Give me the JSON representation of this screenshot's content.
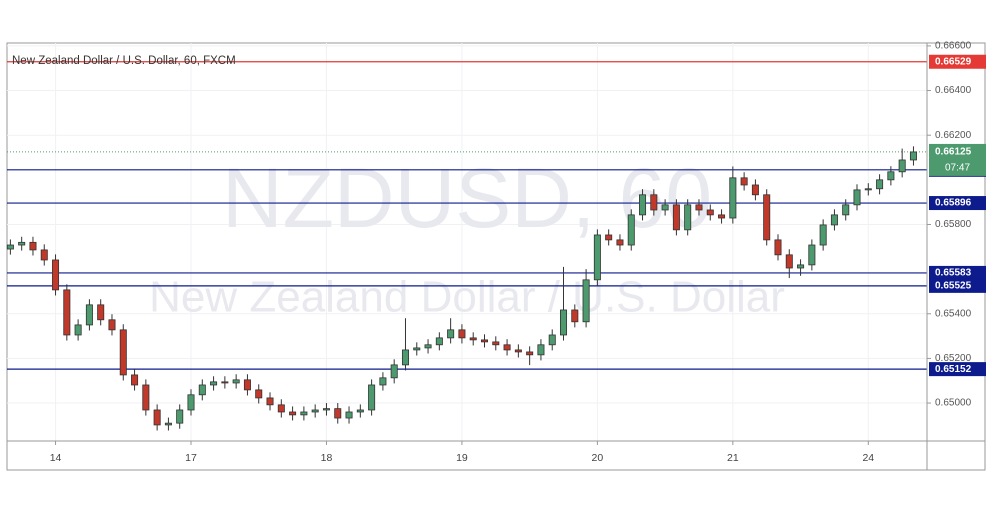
{
  "chart_data": {
    "type": "candlestick",
    "title": "New Zealand Dollar / U.S. Dollar, 60, FXCM",
    "watermark_symbol": "NZDUSD, 60",
    "watermark_name": "New Zealand Dollar / U.S. Dollar",
    "up_color": "#4c9a6e",
    "down_color": "#c0392b",
    "grid": true,
    "xlim": [
      -0.3,
      81.2
    ],
    "ylim": [
      0.6483,
      0.66613
    ],
    "yticks": [
      {
        "value": 0.65,
        "label": "0.65000"
      },
      {
        "value": 0.652,
        "label": "0.65200"
      },
      {
        "value": 0.654,
        "label": "0.65400"
      },
      {
        "value": 0.658,
        "label": "0.65800"
      },
      {
        "value": 0.662,
        "label": "0.66200"
      },
      {
        "value": 0.664,
        "label": "0.66400"
      },
      {
        "value": 0.666,
        "label": "0.66600"
      }
    ],
    "xticks": [
      {
        "value": 4,
        "label": "14"
      },
      {
        "value": 16,
        "label": "17"
      },
      {
        "value": 28,
        "label": "18"
      },
      {
        "value": 40,
        "label": "19"
      },
      {
        "value": 52,
        "label": "20"
      },
      {
        "value": 64,
        "label": "21"
      },
      {
        "value": 76,
        "label": "24"
      }
    ],
    "levels": [
      {
        "value": 0.66529,
        "color": "#e53935"
      },
      {
        "value": 0.66045,
        "color": "#0d1b8c"
      },
      {
        "value": 0.65896,
        "color": "#0d1b8c"
      },
      {
        "value": 0.65583,
        "color": "#0d1b8c"
      },
      {
        "value": 0.65525,
        "color": "#0d1b8c"
      },
      {
        "value": 0.65152,
        "color": "#0d1b8c"
      }
    ],
    "last_price": 0.66125,
    "last_price_color": "#4c9a6e",
    "countdown": "07:47",
    "open": [
      0.6569,
      0.65708,
      0.6572,
      0.65686,
      0.65641,
      0.65507,
      0.65305,
      0.6535,
      0.6544,
      0.65373,
      0.65328,
      0.65126,
      0.65081,
      0.64969,
      0.64902,
      0.6491,
      0.64969,
      0.65037,
      0.65081,
      0.65095,
      0.6509,
      0.65104,
      0.65059,
      0.65023,
      0.64992,
      0.6496,
      0.64947,
      0.6496,
      0.64969,
      0.64975,
      0.64933,
      0.6496,
      0.64969,
      0.65081,
      0.65113,
      0.65171,
      0.65238,
      0.65247,
      0.65261,
      0.65292,
      0.65328,
      0.65292,
      0.65283,
      0.65274,
      0.65261,
      0.65238,
      0.65229,
      0.65216,
      0.65261,
      0.65305,
      0.65417,
      0.65364,
      0.65552,
      0.65753,
      0.65731,
      0.65708,
      0.65843,
      0.65933,
      0.65865,
      0.65888,
      0.65776,
      0.65888,
      0.65865,
      0.65843,
      0.65829,
      0.66009,
      0.65977,
      0.65933,
      0.65731,
      0.65664,
      0.65605,
      0.65619,
      0.65708,
      0.65798,
      0.65843,
      0.65888,
      0.65955,
      0.6596,
      0.66,
      0.66036,
      0.66089
    ],
    "high": [
      0.65733,
      0.65745,
      0.65745,
      0.65711,
      0.65666,
      0.65532,
      0.65375,
      0.65465,
      0.65465,
      0.65398,
      0.65353,
      0.65151,
      0.65106,
      0.64994,
      0.64935,
      0.64994,
      0.65062,
      0.65106,
      0.6512,
      0.6512,
      0.65129,
      0.65129,
      0.65084,
      0.65048,
      0.65017,
      0.64985,
      0.64985,
      0.64994,
      0.65,
      0.65,
      0.64985,
      0.64994,
      0.65106,
      0.65138,
      0.65196,
      0.6538,
      0.65272,
      0.65286,
      0.65317,
      0.6538,
      0.65353,
      0.65317,
      0.65308,
      0.65299,
      0.65286,
      0.65263,
      0.65254,
      0.65286,
      0.6533,
      0.6561,
      0.65442,
      0.656,
      0.65778,
      0.65778,
      0.65756,
      0.65868,
      0.65958,
      0.65958,
      0.65913,
      0.65913,
      0.65913,
      0.65913,
      0.6589,
      0.65868,
      0.6606,
      0.66034,
      0.66002,
      0.65958,
      0.65756,
      0.65689,
      0.65644,
      0.65733,
      0.65823,
      0.65868,
      0.65913,
      0.6598,
      0.65985,
      0.66025,
      0.66061,
      0.6614,
      0.6615
    ],
    "low": [
      0.65665,
      0.65683,
      0.65661,
      0.65616,
      0.65482,
      0.6528,
      0.6528,
      0.65325,
      0.65348,
      0.65303,
      0.65101,
      0.65056,
      0.64944,
      0.64877,
      0.64877,
      0.64885,
      0.64944,
      0.65012,
      0.65056,
      0.65065,
      0.65065,
      0.65034,
      0.64998,
      0.64967,
      0.64935,
      0.64922,
      0.64922,
      0.64935,
      0.64944,
      0.64908,
      0.64908,
      0.64935,
      0.64944,
      0.65056,
      0.65088,
      0.65146,
      0.65213,
      0.65222,
      0.65236,
      0.65267,
      0.65267,
      0.65258,
      0.65249,
      0.65236,
      0.65213,
      0.65204,
      0.6517,
      0.65191,
      0.65236,
      0.6528,
      0.65339,
      0.65339,
      0.65527,
      0.65706,
      0.65683,
      0.65683,
      0.65818,
      0.6584,
      0.6584,
      0.65751,
      0.65751,
      0.6584,
      0.65818,
      0.65804,
      0.65804,
      0.65952,
      0.65908,
      0.65706,
      0.65639,
      0.6556,
      0.6557,
      0.65594,
      0.65683,
      0.65773,
      0.65818,
      0.65863,
      0.6593,
      0.65935,
      0.65975,
      0.66011,
      0.66064
    ],
    "close": [
      0.65708,
      0.6572,
      0.65686,
      0.65641,
      0.65507,
      0.65305,
      0.6535,
      0.6544,
      0.65373,
      0.65328,
      0.65126,
      0.65081,
      0.64969,
      0.64902,
      0.6491,
      0.64969,
      0.65037,
      0.65081,
      0.65095,
      0.6509,
      0.65104,
      0.65059,
      0.65023,
      0.64992,
      0.6496,
      0.64947,
      0.6496,
      0.64969,
      0.64975,
      0.64933,
      0.6496,
      0.64969,
      0.65081,
      0.65113,
      0.65171,
      0.65238,
      0.65247,
      0.65261,
      0.65292,
      0.65328,
      0.65292,
      0.65283,
      0.65274,
      0.65261,
      0.65238,
      0.65229,
      0.65216,
      0.65261,
      0.65305,
      0.65417,
      0.65364,
      0.65552,
      0.65753,
      0.65731,
      0.65708,
      0.65843,
      0.65933,
      0.65865,
      0.65888,
      0.65776,
      0.65888,
      0.65865,
      0.65843,
      0.65829,
      0.66009,
      0.65977,
      0.65933,
      0.65731,
      0.65664,
      0.65605,
      0.65619,
      0.65708,
      0.65798,
      0.65843,
      0.65888,
      0.65955,
      0.6596,
      0.66,
      0.66036,
      0.66089,
      0.66125
    ]
  }
}
